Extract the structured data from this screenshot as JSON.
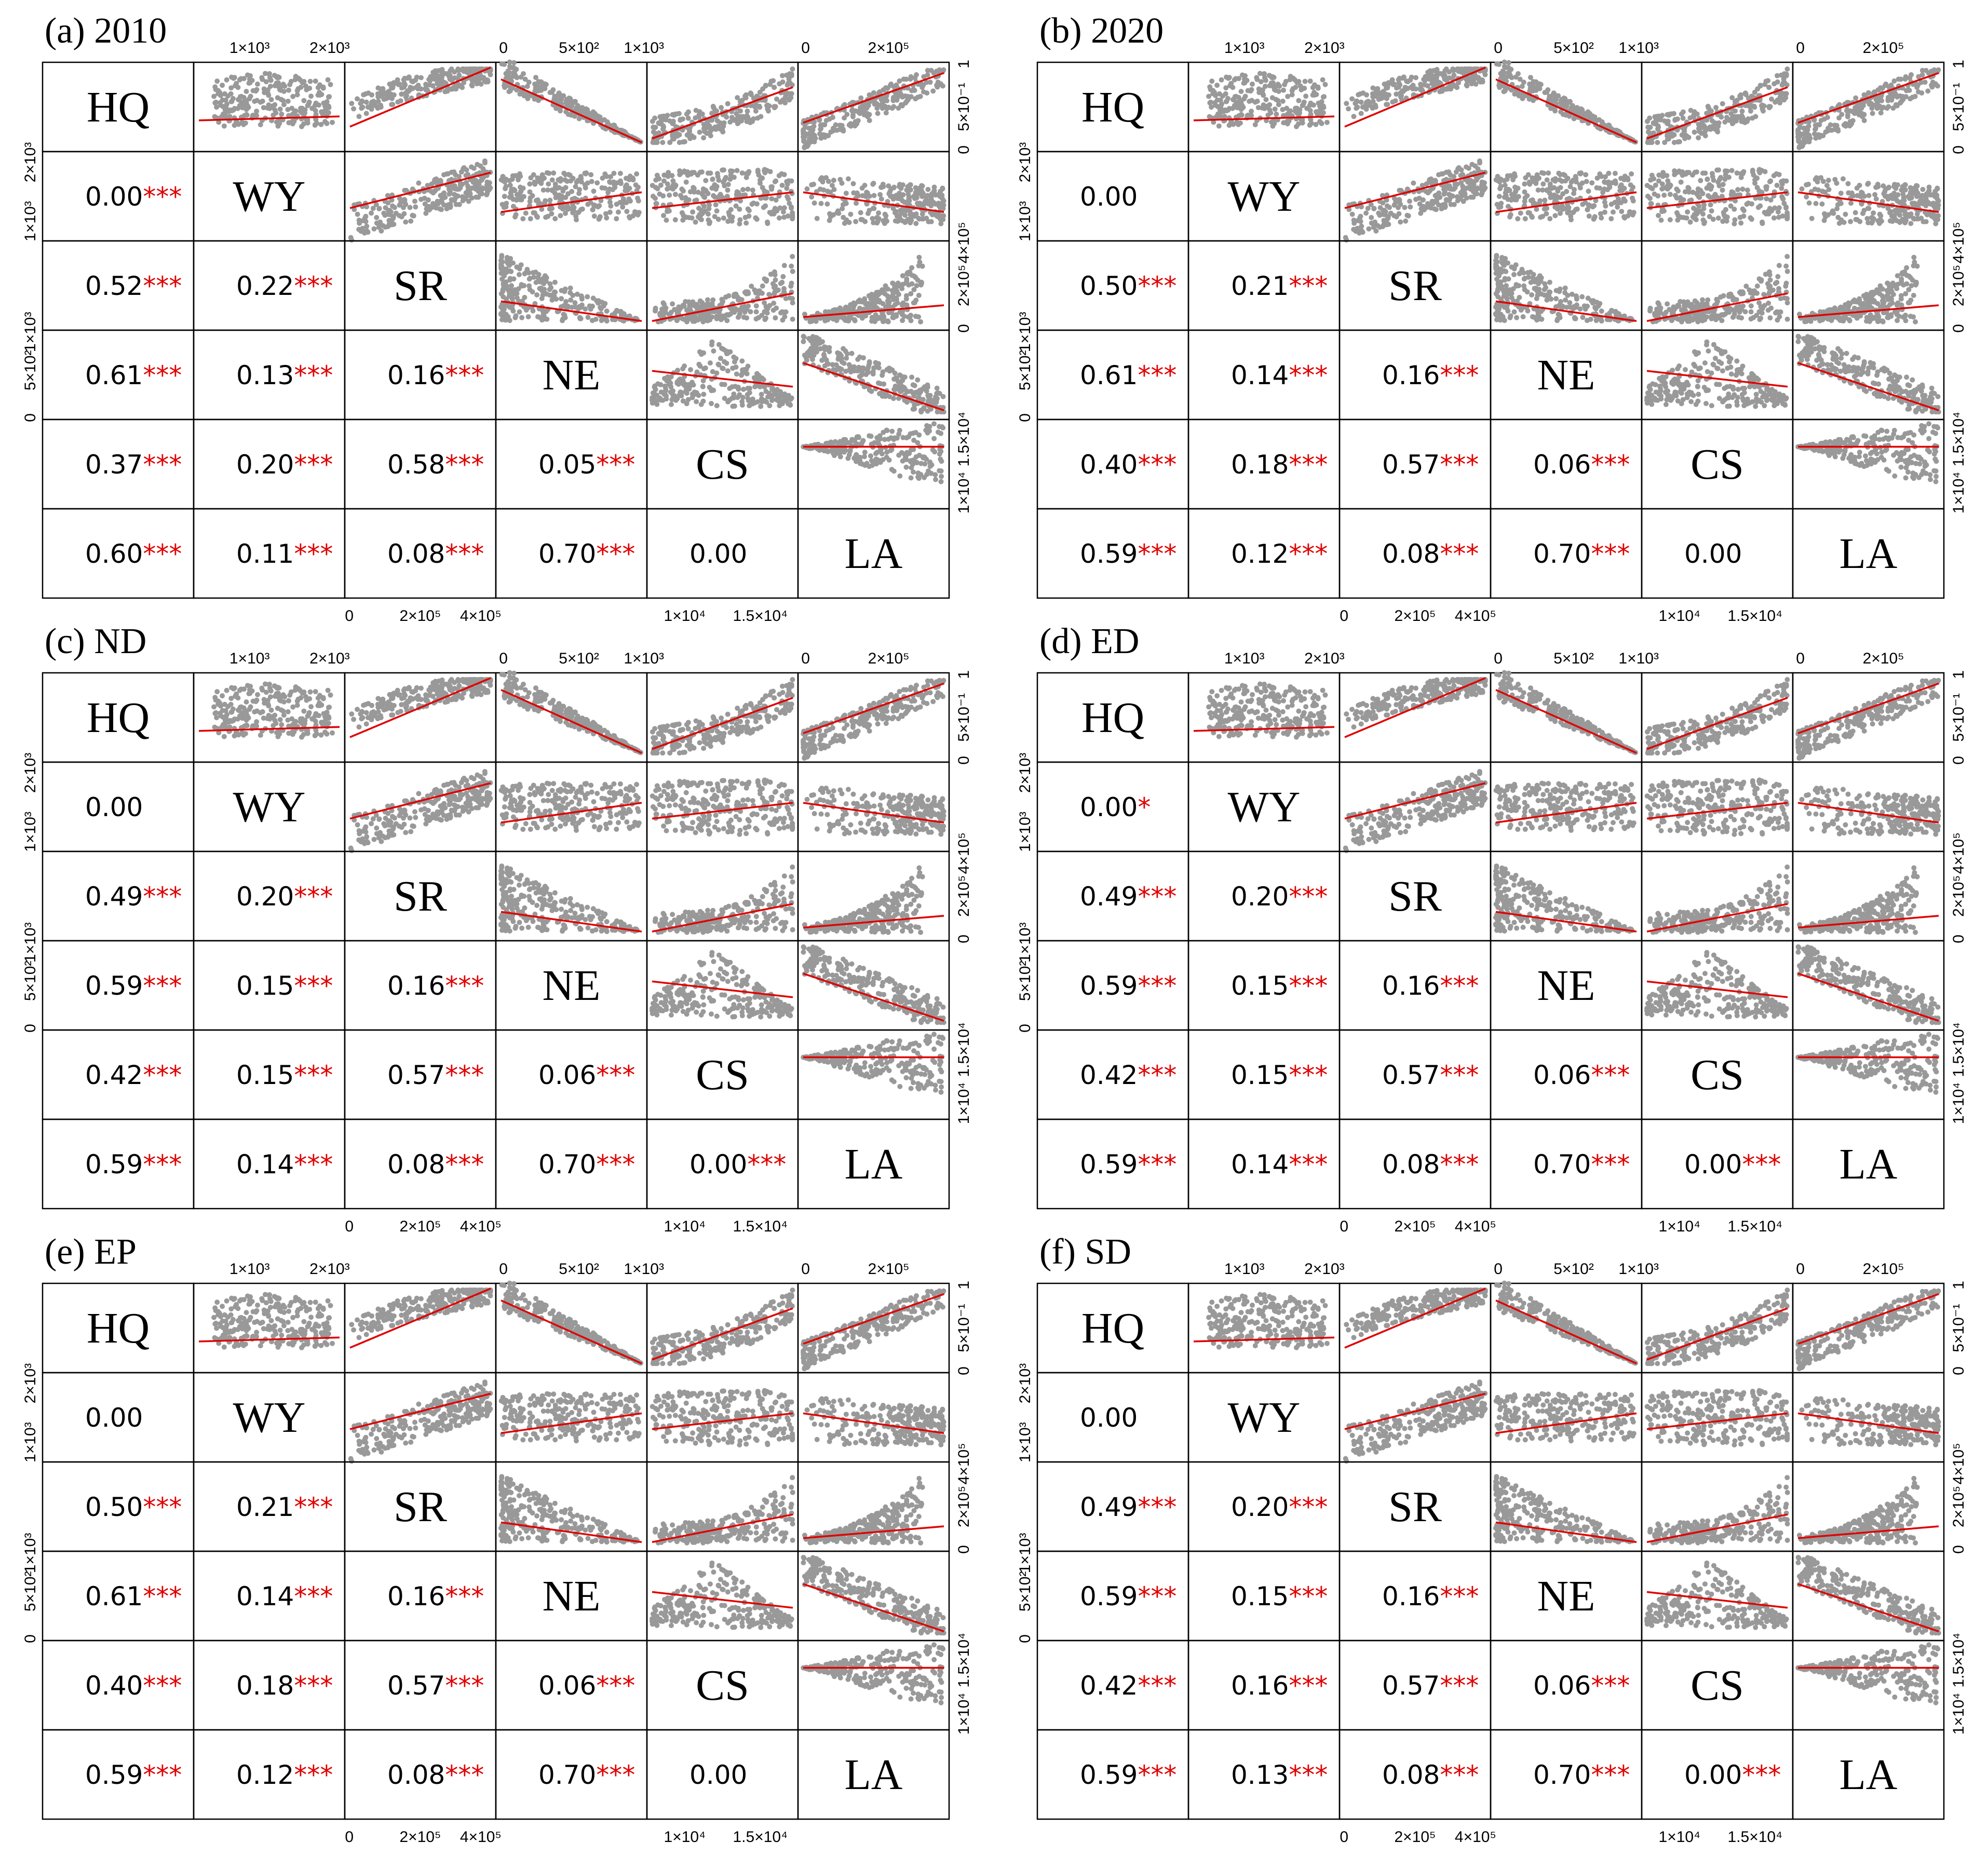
{
  "chart_data": {
    "type": "scatter-matrix",
    "variables": [
      "HQ",
      "WY",
      "SR",
      "NE",
      "CS",
      "LA"
    ],
    "axis_ticks": {
      "WY": [
        "1×10³",
        "2×10³"
      ],
      "SR": [
        "0",
        "2×10⁵",
        "4×10⁵"
      ],
      "NE": [
        "0",
        "5×10²",
        "1×10³"
      ],
      "CS": [
        "1×10⁴",
        "1.5×10⁴"
      ],
      "LA": [
        "0",
        "2×10⁵"
      ],
      "HQ": [
        "0",
        "5×10⁻¹",
        "1"
      ]
    },
    "panels": [
      {
        "title": "(a) 2010",
        "correlations": [
          {
            "row": 1,
            "col": 0,
            "value": "0.00",
            "sig": "***"
          },
          {
            "row": 2,
            "col": 0,
            "value": "0.52",
            "sig": "***"
          },
          {
            "row": 2,
            "col": 1,
            "value": "0.22",
            "sig": "***"
          },
          {
            "row": 3,
            "col": 0,
            "value": "0.61",
            "sig": "***"
          },
          {
            "row": 3,
            "col": 1,
            "value": "0.13",
            "sig": "***"
          },
          {
            "row": 3,
            "col": 2,
            "value": "0.16",
            "sig": "***"
          },
          {
            "row": 4,
            "col": 0,
            "value": "0.37",
            "sig": "***"
          },
          {
            "row": 4,
            "col": 1,
            "value": "0.20",
            "sig": "***"
          },
          {
            "row": 4,
            "col": 2,
            "value": "0.58",
            "sig": "***"
          },
          {
            "row": 4,
            "col": 3,
            "value": "0.05",
            "sig": "***"
          },
          {
            "row": 5,
            "col": 0,
            "value": "0.60",
            "sig": "***"
          },
          {
            "row": 5,
            "col": 1,
            "value": "0.11",
            "sig": "***"
          },
          {
            "row": 5,
            "col": 2,
            "value": "0.08",
            "sig": "***"
          },
          {
            "row": 5,
            "col": 3,
            "value": "0.70",
            "sig": "***"
          },
          {
            "row": 5,
            "col": 4,
            "value": "0.00",
            "sig": ""
          }
        ]
      },
      {
        "title": "(b) 2020",
        "correlations": [
          {
            "row": 1,
            "col": 0,
            "value": "0.00",
            "sig": ""
          },
          {
            "row": 2,
            "col": 0,
            "value": "0.50",
            "sig": "***"
          },
          {
            "row": 2,
            "col": 1,
            "value": "0.21",
            "sig": "***"
          },
          {
            "row": 3,
            "col": 0,
            "value": "0.61",
            "sig": "***"
          },
          {
            "row": 3,
            "col": 1,
            "value": "0.14",
            "sig": "***"
          },
          {
            "row": 3,
            "col": 2,
            "value": "0.16",
            "sig": "***"
          },
          {
            "row": 4,
            "col": 0,
            "value": "0.40",
            "sig": "***"
          },
          {
            "row": 4,
            "col": 1,
            "value": "0.18",
            "sig": "***"
          },
          {
            "row": 4,
            "col": 2,
            "value": "0.57",
            "sig": "***"
          },
          {
            "row": 4,
            "col": 3,
            "value": "0.06",
            "sig": "***"
          },
          {
            "row": 5,
            "col": 0,
            "value": "0.59",
            "sig": "***"
          },
          {
            "row": 5,
            "col": 1,
            "value": "0.12",
            "sig": "***"
          },
          {
            "row": 5,
            "col": 2,
            "value": "0.08",
            "sig": "***"
          },
          {
            "row": 5,
            "col": 3,
            "value": "0.70",
            "sig": "***"
          },
          {
            "row": 5,
            "col": 4,
            "value": "0.00",
            "sig": ""
          }
        ]
      },
      {
        "title": "(c) ND",
        "correlations": [
          {
            "row": 1,
            "col": 0,
            "value": "0.00",
            "sig": ""
          },
          {
            "row": 2,
            "col": 0,
            "value": "0.49",
            "sig": "***"
          },
          {
            "row": 2,
            "col": 1,
            "value": "0.20",
            "sig": "***"
          },
          {
            "row": 3,
            "col": 0,
            "value": "0.59",
            "sig": "***"
          },
          {
            "row": 3,
            "col": 1,
            "value": "0.15",
            "sig": "***"
          },
          {
            "row": 3,
            "col": 2,
            "value": "0.16",
            "sig": "***"
          },
          {
            "row": 4,
            "col": 0,
            "value": "0.42",
            "sig": "***"
          },
          {
            "row": 4,
            "col": 1,
            "value": "0.15",
            "sig": "***"
          },
          {
            "row": 4,
            "col": 2,
            "value": "0.57",
            "sig": "***"
          },
          {
            "row": 4,
            "col": 3,
            "value": "0.06",
            "sig": "***"
          },
          {
            "row": 5,
            "col": 0,
            "value": "0.59",
            "sig": "***"
          },
          {
            "row": 5,
            "col": 1,
            "value": "0.14",
            "sig": "***"
          },
          {
            "row": 5,
            "col": 2,
            "value": "0.08",
            "sig": "***"
          },
          {
            "row": 5,
            "col": 3,
            "value": "0.70",
            "sig": "***"
          },
          {
            "row": 5,
            "col": 4,
            "value": "0.00",
            "sig": "***"
          }
        ]
      },
      {
        "title": "(d) ED",
        "correlations": [
          {
            "row": 1,
            "col": 0,
            "value": "0.00",
            "sig": "*"
          },
          {
            "row": 2,
            "col": 0,
            "value": "0.49",
            "sig": "***"
          },
          {
            "row": 2,
            "col": 1,
            "value": "0.20",
            "sig": "***"
          },
          {
            "row": 3,
            "col": 0,
            "value": "0.59",
            "sig": "***"
          },
          {
            "row": 3,
            "col": 1,
            "value": "0.15",
            "sig": "***"
          },
          {
            "row": 3,
            "col": 2,
            "value": "0.16",
            "sig": "***"
          },
          {
            "row": 4,
            "col": 0,
            "value": "0.42",
            "sig": "***"
          },
          {
            "row": 4,
            "col": 1,
            "value": "0.15",
            "sig": "***"
          },
          {
            "row": 4,
            "col": 2,
            "value": "0.57",
            "sig": "***"
          },
          {
            "row": 4,
            "col": 3,
            "value": "0.06",
            "sig": "***"
          },
          {
            "row": 5,
            "col": 0,
            "value": "0.59",
            "sig": "***"
          },
          {
            "row": 5,
            "col": 1,
            "value": "0.14",
            "sig": "***"
          },
          {
            "row": 5,
            "col": 2,
            "value": "0.08",
            "sig": "***"
          },
          {
            "row": 5,
            "col": 3,
            "value": "0.70",
            "sig": "***"
          },
          {
            "row": 5,
            "col": 4,
            "value": "0.00",
            "sig": "***"
          }
        ]
      },
      {
        "title": "(e) EP",
        "correlations": [
          {
            "row": 1,
            "col": 0,
            "value": "0.00",
            "sig": ""
          },
          {
            "row": 2,
            "col": 0,
            "value": "0.50",
            "sig": "***"
          },
          {
            "row": 2,
            "col": 1,
            "value": "0.21",
            "sig": "***"
          },
          {
            "row": 3,
            "col": 0,
            "value": "0.61",
            "sig": "***"
          },
          {
            "row": 3,
            "col": 1,
            "value": "0.14",
            "sig": "***"
          },
          {
            "row": 3,
            "col": 2,
            "value": "0.16",
            "sig": "***"
          },
          {
            "row": 4,
            "col": 0,
            "value": "0.40",
            "sig": "***"
          },
          {
            "row": 4,
            "col": 1,
            "value": "0.18",
            "sig": "***"
          },
          {
            "row": 4,
            "col": 2,
            "value": "0.57",
            "sig": "***"
          },
          {
            "row": 4,
            "col": 3,
            "value": "0.06",
            "sig": "***"
          },
          {
            "row": 5,
            "col": 0,
            "value": "0.59",
            "sig": "***"
          },
          {
            "row": 5,
            "col": 1,
            "value": "0.12",
            "sig": "***"
          },
          {
            "row": 5,
            "col": 2,
            "value": "0.08",
            "sig": "***"
          },
          {
            "row": 5,
            "col": 3,
            "value": "0.70",
            "sig": "***"
          },
          {
            "row": 5,
            "col": 4,
            "value": "0.00",
            "sig": ""
          }
        ]
      },
      {
        "title": "(f) SD",
        "correlations": [
          {
            "row": 1,
            "col": 0,
            "value": "0.00",
            "sig": ""
          },
          {
            "row": 2,
            "col": 0,
            "value": "0.49",
            "sig": "***"
          },
          {
            "row": 2,
            "col": 1,
            "value": "0.20",
            "sig": "***"
          },
          {
            "row": 3,
            "col": 0,
            "value": "0.59",
            "sig": "***"
          },
          {
            "row": 3,
            "col": 1,
            "value": "0.15",
            "sig": "***"
          },
          {
            "row": 3,
            "col": 2,
            "value": "0.16",
            "sig": "***"
          },
          {
            "row": 4,
            "col": 0,
            "value": "0.42",
            "sig": "***"
          },
          {
            "row": 4,
            "col": 1,
            "value": "0.16",
            "sig": "***"
          },
          {
            "row": 4,
            "col": 2,
            "value": "0.57",
            "sig": "***"
          },
          {
            "row": 4,
            "col": 3,
            "value": "0.06",
            "sig": "***"
          },
          {
            "row": 5,
            "col": 0,
            "value": "0.59",
            "sig": "***"
          },
          {
            "row": 5,
            "col": 1,
            "value": "0.13",
            "sig": "***"
          },
          {
            "row": 5,
            "col": 2,
            "value": "0.08",
            "sig": "***"
          },
          {
            "row": 5,
            "col": 3,
            "value": "0.70",
            "sig": "***"
          },
          {
            "row": 5,
            "col": 4,
            "value": "0.00",
            "sig": "***"
          }
        ]
      }
    ]
  },
  "colors": {
    "points": "#999999",
    "regression_line": "#e00000",
    "significance_stars": "#e00000",
    "text": "#000000",
    "background": "#ffffff"
  }
}
